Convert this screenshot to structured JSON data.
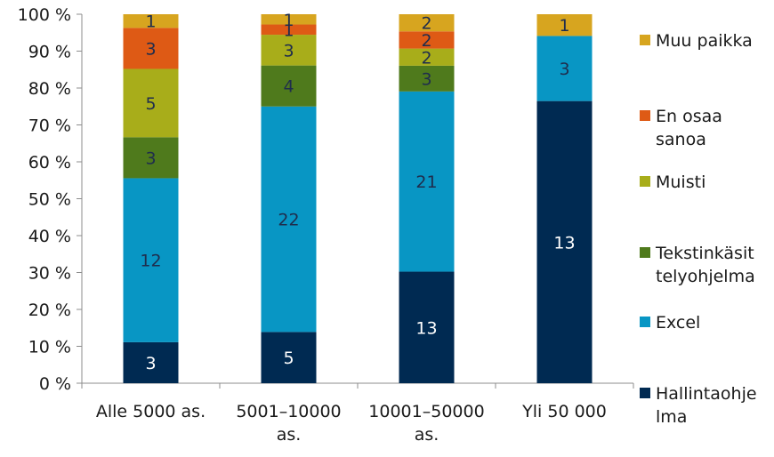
{
  "chart_data": {
    "type": "bar",
    "stacked": true,
    "normalized_percent": true,
    "categories": [
      [
        "Alle 5000 as."
      ],
      [
        "5001–10000",
        "as."
      ],
      [
        "10001–50000",
        "as."
      ],
      [
        "Yli 50 000"
      ]
    ],
    "series": [
      {
        "name": [
          "Hallintaohje",
          "lma"
        ],
        "color": "#002a52",
        "label_color": "#ffffff",
        "values": [
          3,
          5,
          13,
          13
        ]
      },
      {
        "name": [
          "Excel"
        ],
        "color": "#0896c4",
        "label_color": "#1f2d4d",
        "values": [
          12,
          22,
          21,
          3
        ]
      },
      {
        "name": [
          "Tekstinkäsit",
          "telyohjelma"
        ],
        "color": "#4f7a1c",
        "label_color": "#1f2d4d",
        "values": [
          3,
          4,
          3,
          0
        ]
      },
      {
        "name": [
          "Muisti"
        ],
        "color": "#a8ad1a",
        "label_color": "#1f2d4d",
        "values": [
          5,
          3,
          2,
          0
        ]
      },
      {
        "name": [
          "En osaa",
          "sanoa"
        ],
        "color": "#de5a15",
        "label_color": "#1f2d4d",
        "values": [
          3,
          1,
          2,
          0
        ]
      },
      {
        "name": [
          "Muu paikka"
        ],
        "color": "#d7a51f",
        "label_color": "#1f2d4d",
        "values": [
          1,
          1,
          2,
          1
        ]
      }
    ],
    "yticks": [
      "0 %",
      "10 %",
      "20 %",
      "30 %",
      "40 %",
      "50 %",
      "60 %",
      "70 %",
      "80 %",
      "90 %",
      "100 %"
    ],
    "ylim": [
      0,
      100
    ],
    "legend_position": "right",
    "grid": false
  }
}
